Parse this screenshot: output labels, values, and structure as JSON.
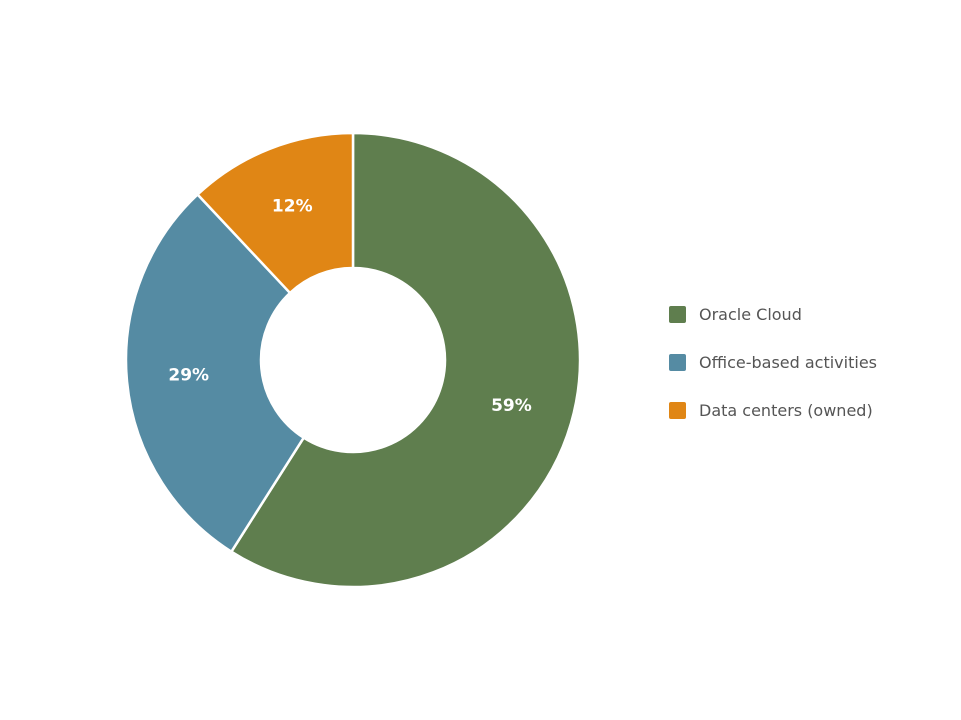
{
  "chart_data": {
    "type": "pie",
    "donut": true,
    "categories": [
      "Oracle Cloud",
      "Office-based activities",
      "Data centers (owned)"
    ],
    "values": [
      59,
      29,
      12
    ],
    "labels": [
      "59%",
      "29%",
      "12%"
    ],
    "colors": [
      "#5f7e4e",
      "#558ba3",
      "#e08615"
    ],
    "legend_position": "right",
    "start": "top",
    "direction": "clockwise"
  }
}
